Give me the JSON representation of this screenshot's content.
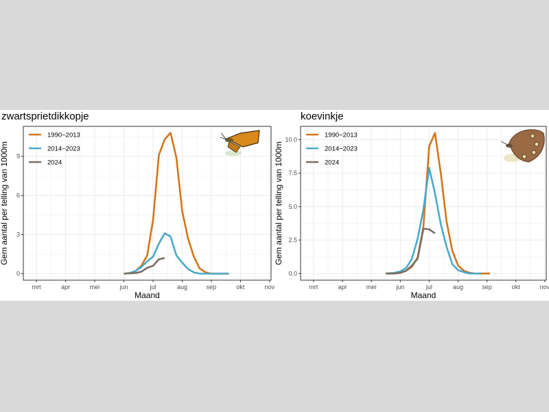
{
  "colors": {
    "1990-2013": "#d4751a",
    "2014-2023": "#4aa9c9",
    "2024": "#7b6d62",
    "grid": "#ebebeb",
    "frame": "#333333"
  },
  "chart_data": [
    {
      "type": "line",
      "title": "zwartsprietdikkopje",
      "xlabel": "Maand",
      "ylabel": "Gem aantal per telling van 1000m",
      "x_tick_labels": [
        "mrt",
        "apr",
        "mei",
        "jun",
        "jul",
        "aug",
        "sep",
        "okt",
        "nov"
      ],
      "y_ticks": [
        0,
        3,
        6,
        9
      ],
      "y_tick_labels": [
        "0",
        "3",
        "6",
        "9"
      ],
      "ylim": [
        -0.5,
        11.3
      ],
      "xlim": [
        2.55,
        11.05
      ],
      "legend_position": "top-left",
      "illustration": "butterfly-skipper-image",
      "series": [
        {
          "name": "1990−2013",
          "color_key": "1990-2013",
          "x": [
            6.0,
            6.2,
            6.4,
            6.6,
            6.8,
            7.0,
            7.2,
            7.4,
            7.6,
            7.8,
            8.0,
            8.2,
            8.4,
            8.6,
            8.8,
            9.0,
            9.2,
            9.4,
            9.6
          ],
          "y": [
            0.0,
            0.05,
            0.2,
            0.6,
            1.4,
            4.1,
            9.1,
            10.3,
            10.8,
            8.9,
            4.8,
            2.7,
            1.3,
            0.4,
            0.1,
            0.0,
            0.0,
            0.0,
            0.0
          ]
        },
        {
          "name": "2014−2023",
          "color_key": "2014-2023",
          "x": [
            6.0,
            6.2,
            6.4,
            6.6,
            6.8,
            7.0,
            7.2,
            7.4,
            7.6,
            7.8,
            8.0,
            8.2,
            8.4,
            8.6,
            8.8,
            9.0,
            9.2,
            9.4,
            9.6
          ],
          "y": [
            0.0,
            0.05,
            0.2,
            0.5,
            0.95,
            1.3,
            2.3,
            3.1,
            2.85,
            1.4,
            0.85,
            0.35,
            0.1,
            0.0,
            0.0,
            0.0,
            0.0,
            0.0,
            0.0
          ]
        },
        {
          "name": "2024",
          "color_key": "2024",
          "x": [
            6.0,
            6.2,
            6.4,
            6.6,
            6.8,
            7.0,
            7.2,
            7.4
          ],
          "y": [
            0.0,
            0.02,
            0.05,
            0.15,
            0.45,
            0.6,
            1.1,
            1.2
          ]
        }
      ]
    },
    {
      "type": "line",
      "title": "koevinkje",
      "xlabel": "Maand",
      "ylabel": "Gem aantal per telling van 1000m",
      "x_tick_labels": [
        "mrt",
        "apr",
        "mei",
        "jun",
        "jul",
        "aug",
        "sep",
        "okt",
        "nov"
      ],
      "y_ticks": [
        0,
        2.5,
        5,
        7.5,
        10
      ],
      "y_tick_labels": [
        "0.0",
        "2.5",
        "5.0",
        "7.5",
        "10.0"
      ],
      "ylim": [
        -0.5,
        11.0
      ],
      "xlim": [
        2.55,
        11.05
      ],
      "legend_position": "top-left",
      "illustration": "butterfly-ringlet-image",
      "series": [
        {
          "name": "1990−2013",
          "color_key": "1990-2013",
          "x": [
            5.5,
            5.8,
            6.0,
            6.2,
            6.4,
            6.6,
            6.8,
            7.0,
            7.2,
            7.4,
            7.6,
            7.8,
            8.0,
            8.2,
            8.4,
            8.6,
            8.8,
            9.0,
            9.1
          ],
          "y": [
            0.0,
            0.0,
            0.05,
            0.2,
            0.5,
            1.2,
            3.5,
            9.5,
            10.5,
            7.5,
            3.9,
            1.7,
            0.6,
            0.2,
            0.05,
            0.0,
            0.0,
            0.0,
            0.0
          ]
        },
        {
          "name": "2014−2023",
          "color_key": "2014-2023",
          "x": [
            5.5,
            5.8,
            6.0,
            6.2,
            6.4,
            6.6,
            6.8,
            7.0,
            7.2,
            7.4,
            7.6,
            7.8,
            8.0,
            8.2,
            8.4,
            8.6,
            8.8
          ],
          "y": [
            0.0,
            0.05,
            0.15,
            0.4,
            1.1,
            2.6,
            4.8,
            7.9,
            6.0,
            3.7,
            2.0,
            0.7,
            0.25,
            0.1,
            0.0,
            0.0,
            0.0
          ]
        },
        {
          "name": "2024",
          "color_key": "2024",
          "x": [
            5.5,
            5.8,
            6.0,
            6.2,
            6.4,
            6.6,
            6.8,
            7.0,
            7.2
          ],
          "y": [
            0.0,
            0.0,
            0.05,
            0.2,
            0.6,
            1.1,
            3.35,
            3.3,
            3.0
          ]
        }
      ]
    }
  ]
}
